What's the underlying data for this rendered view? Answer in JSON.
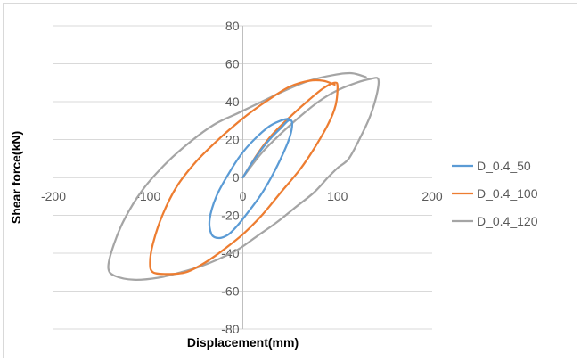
{
  "chart_data": {
    "type": "line",
    "title": "",
    "xlabel": "Displacement(mm)",
    "ylabel": "Shear force(kN)",
    "xlim": [
      -200,
      200
    ],
    "ylim": [
      -80,
      80
    ],
    "x_ticks": [
      -200,
      -100,
      0,
      100,
      200
    ],
    "y_ticks": [
      -80,
      -60,
      -40,
      -20,
      0,
      20,
      40,
      60,
      80
    ],
    "grid": "horizontal",
    "legend_position": "right",
    "series": [
      {
        "name": "D_0.4_50",
        "color": "#5b9bd5",
        "points": [
          [
            0,
            0
          ],
          [
            10,
            8
          ],
          [
            20,
            15
          ],
          [
            30,
            21
          ],
          [
            40,
            26
          ],
          [
            48,
            30
          ],
          [
            52,
            29
          ],
          [
            50,
            22
          ],
          [
            42,
            12
          ],
          [
            30,
            0
          ],
          [
            18,
            -10
          ],
          [
            6,
            -18
          ],
          [
            -5,
            -25
          ],
          [
            -15,
            -30
          ],
          [
            -25,
            -32
          ],
          [
            -33,
            -30
          ],
          [
            -35,
            -22
          ],
          [
            -28,
            -10
          ],
          [
            -15,
            2
          ],
          [
            -2,
            12
          ],
          [
            12,
            20
          ],
          [
            28,
            27
          ],
          [
            40,
            30
          ],
          [
            48,
            31
          ]
        ]
      },
      {
        "name": "D_0.4_100",
        "color": "#ed7d31",
        "points": [
          [
            0,
            0
          ],
          [
            15,
            12
          ],
          [
            30,
            22
          ],
          [
            50,
            32
          ],
          [
            70,
            41
          ],
          [
            85,
            47
          ],
          [
            97,
            50
          ],
          [
            100,
            48
          ],
          [
            98,
            38
          ],
          [
            90,
            28
          ],
          [
            75,
            15
          ],
          [
            60,
            4
          ],
          [
            40,
            -8
          ],
          [
            20,
            -20
          ],
          [
            0,
            -30
          ],
          [
            -20,
            -38
          ],
          [
            -40,
            -45
          ],
          [
            -60,
            -50
          ],
          [
            -80,
            -51
          ],
          [
            -95,
            -50
          ],
          [
            -98,
            -45
          ],
          [
            -95,
            -35
          ],
          [
            -85,
            -20
          ],
          [
            -70,
            -5
          ],
          [
            -50,
            8
          ],
          [
            -30,
            18
          ],
          [
            -10,
            27
          ],
          [
            10,
            35
          ],
          [
            30,
            42
          ],
          [
            50,
            48
          ],
          [
            70,
            51
          ],
          [
            85,
            51
          ],
          [
            97,
            49
          ]
        ]
      },
      {
        "name": "D_0.4_120",
        "color": "#a5a5a5",
        "points": [
          [
            0,
            0
          ],
          [
            20,
            13
          ],
          [
            40,
            23
          ],
          [
            60,
            32
          ],
          [
            80,
            40
          ],
          [
            100,
            46
          ],
          [
            120,
            50
          ],
          [
            135,
            52
          ],
          [
            143,
            52
          ],
          [
            142,
            45
          ],
          [
            135,
            33
          ],
          [
            125,
            22
          ],
          [
            112,
            10
          ],
          [
            100,
            5
          ],
          [
            90,
            0
          ],
          [
            75,
            -8
          ],
          [
            55,
            -16
          ],
          [
            35,
            -24
          ],
          [
            15,
            -31
          ],
          [
            -5,
            -38
          ],
          [
            -25,
            -43
          ],
          [
            -45,
            -47
          ],
          [
            -65,
            -50
          ],
          [
            -90,
            -53
          ],
          [
            -115,
            -54
          ],
          [
            -135,
            -52
          ],
          [
            -142,
            -48
          ],
          [
            -138,
            -38
          ],
          [
            -125,
            -22
          ],
          [
            -105,
            -6
          ],
          [
            -80,
            8
          ],
          [
            -55,
            19
          ],
          [
            -30,
            28
          ],
          [
            -5,
            34
          ],
          [
            20,
            40
          ],
          [
            45,
            46
          ],
          [
            70,
            51
          ],
          [
            95,
            54
          ],
          [
            115,
            55
          ],
          [
            130,
            53
          ]
        ]
      }
    ]
  }
}
